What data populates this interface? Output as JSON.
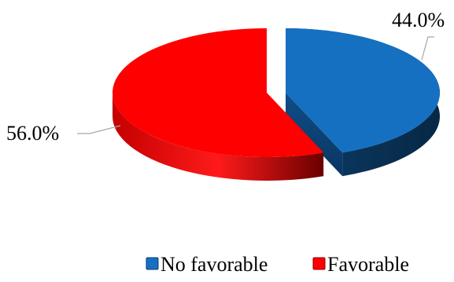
{
  "chart_data": {
    "type": "pie",
    "style": "3d-exploded",
    "slices": [
      {
        "label": "No favorable",
        "value": 44.0,
        "display": "44.0%",
        "color": "#1570c2"
      },
      {
        "label": "Favorable",
        "value": 56.0,
        "display": "56.0%",
        "color": "#ff0000"
      }
    ],
    "legend": {
      "position": "bottom"
    }
  }
}
